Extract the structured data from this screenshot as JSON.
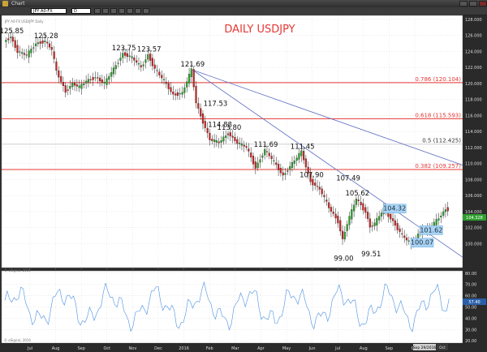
{
  "window": {
    "title": "Chart"
  },
  "toolbar": {
    "symbol": "JPY A0-FX",
    "interval": "D"
  },
  "header": {
    "info": "JPY A0-FX  USD/JPY  Daily"
  },
  "credits": {
    "price_panel": "© eSignal, 2016",
    "indicator_panel": "© eSignal, 2016"
  },
  "current": {
    "price_label": "104.328",
    "indicator_label": "57.40"
  },
  "status": {
    "date_tag": "Sep 29/2016",
    "cursor_tag": "Oct"
  },
  "chart_data": [
    {
      "type": "candlestick",
      "title": "DAILY USDJPY",
      "x_tick_labels": [
        "Jul",
        "Aug",
        "Sep",
        "Oct",
        "Nov",
        "Dec",
        "2016",
        "Feb",
        "Mar",
        "Apr",
        "May",
        "Jun",
        "Jul",
        "Aug",
        "Sep",
        "Oct"
      ],
      "ylim": [
        97,
        128.5
      ],
      "y_ticks": [
        100,
        102,
        104,
        106,
        108,
        110,
        112,
        114,
        116,
        118,
        120,
        122,
        124,
        126,
        128
      ],
      "price_path": [
        [
          0,
          125.2
        ],
        [
          3,
          125.85
        ],
        [
          6,
          124.0
        ],
        [
          10,
          123.5
        ],
        [
          14,
          125.0
        ],
        [
          18,
          125.28
        ],
        [
          21,
          124.2
        ],
        [
          23,
          121.5
        ],
        [
          27,
          119.0
        ],
        [
          30,
          120.0
        ],
        [
          33,
          119.5
        ],
        [
          36,
          120.3
        ],
        [
          40,
          120.8
        ],
        [
          44,
          120.0
        ],
        [
          48,
          121.8
        ],
        [
          52,
          123.75
        ],
        [
          56,
          123.2
        ],
        [
          60,
          122.0
        ],
        [
          63,
          123.57
        ],
        [
          66,
          121.8
        ],
        [
          70,
          120.3
        ],
        [
          74,
          118.6
        ],
        [
          78,
          118.8
        ],
        [
          82,
          121.69
        ],
        [
          84,
          117.6
        ],
        [
          86,
          116.0
        ],
        [
          90,
          113.0
        ],
        [
          94,
          112.6
        ],
        [
          98,
          113.8
        ],
        [
          102,
          112.6
        ],
        [
          106,
          112.0
        ],
        [
          110,
          109.5
        ],
        [
          114,
          111.7
        ],
        [
          118,
          110.2
        ],
        [
          122,
          108.5
        ],
        [
          126,
          110.0
        ],
        [
          130,
          111.45
        ],
        [
          134,
          107.8
        ],
        [
          138,
          106.8
        ],
        [
          142,
          104.5
        ],
        [
          146,
          102.8
        ],
        [
          148,
          100.5
        ],
        [
          150,
          102.5
        ],
        [
          154,
          105.6
        ],
        [
          158,
          104.0
        ],
        [
          160,
          102.1
        ],
        [
          162,
          102.5
        ],
        [
          166,
          104.3
        ],
        [
          170,
          102.8
        ],
        [
          174,
          101.0
        ],
        [
          178,
          99.9
        ],
        [
          182,
          101.6
        ],
        [
          186,
          101.8
        ],
        [
          190,
          103.2
        ],
        [
          193,
          104.3
        ]
      ],
      "horizontal_lines": [
        {
          "label": "0.786 (120.104)",
          "value": 120.104,
          "color": "#e53935"
        },
        {
          "label": "0.618 (115.593)",
          "value": 115.593,
          "color": "#e53935"
        },
        {
          "label": "0.5 (112.425)",
          "value": 112.425,
          "color": "#cfcfcf"
        },
        {
          "label": "0.382 (109.257)",
          "value": 109.257,
          "color": "#e53935"
        }
      ],
      "trendlines": [
        {
          "from": [
            82,
            121.69
          ],
          "to": [
            200,
            109.8
          ]
        },
        {
          "from": [
            82,
            121.69
          ],
          "to": [
            200,
            98.3
          ]
        }
      ],
      "annotations": [
        {
          "text": "125.85",
          "at": [
            3,
            125.85
          ],
          "pos": "above"
        },
        {
          "text": "125.28",
          "at": [
            18,
            125.28
          ],
          "pos": "above"
        },
        {
          "text": "123.75",
          "at": [
            52,
            123.75
          ],
          "pos": "above"
        },
        {
          "text": "123.57",
          "at": [
            63,
            123.57
          ],
          "pos": "above"
        },
        {
          "text": "121.69",
          "at": [
            82,
            121.69
          ],
          "pos": "above"
        },
        {
          "text": "117.53",
          "at": [
            86,
            117.53
          ],
          "pos": "right"
        },
        {
          "text": "114.88",
          "at": [
            88,
            114.88
          ],
          "pos": "right"
        },
        {
          "text": "113.80",
          "at": [
            98,
            113.8
          ],
          "pos": "above"
        },
        {
          "text": "111.69",
          "at": [
            114,
            111.7
          ],
          "pos": "above"
        },
        {
          "text": "111.45",
          "at": [
            130,
            111.45
          ],
          "pos": "above"
        },
        {
          "text": "107.90",
          "at": [
            134,
            107.9
          ],
          "pos": "above"
        },
        {
          "text": "107.49",
          "at": [
            150,
            107.49
          ],
          "pos": "above"
        },
        {
          "text": "105.62",
          "at": [
            154,
            105.62
          ],
          "pos": "above"
        },
        {
          "text": "99.00",
          "at": [
            148,
            99.0
          ],
          "pos": "below"
        },
        {
          "text": "99.51",
          "at": [
            160,
            99.51
          ],
          "pos": "below"
        },
        {
          "text": "104.32",
          "at": [
            166,
            104.32
          ],
          "pos": "box"
        },
        {
          "text": "101.62",
          "at": [
            182,
            101.62
          ],
          "pos": "box"
        },
        {
          "text": "100.07",
          "at": [
            178,
            100.07
          ],
          "pos": "box"
        }
      ]
    },
    {
      "type": "line",
      "ylim": [
        18,
        82
      ],
      "y_ticks": [
        80,
        70,
        60,
        50,
        40,
        30,
        20
      ],
      "last_value": 57.4
    }
  ],
  "colors": {
    "background": "#ffffff",
    "grid": "#cfcfcf",
    "candle_up": "#2e9e2e",
    "candle_down": "#c62828",
    "wick": "#222222",
    "trendline": "#5c6bc0",
    "title": "#e53935",
    "box_fill": "#a9d4f5",
    "indicator_line": "#4a90e2"
  }
}
